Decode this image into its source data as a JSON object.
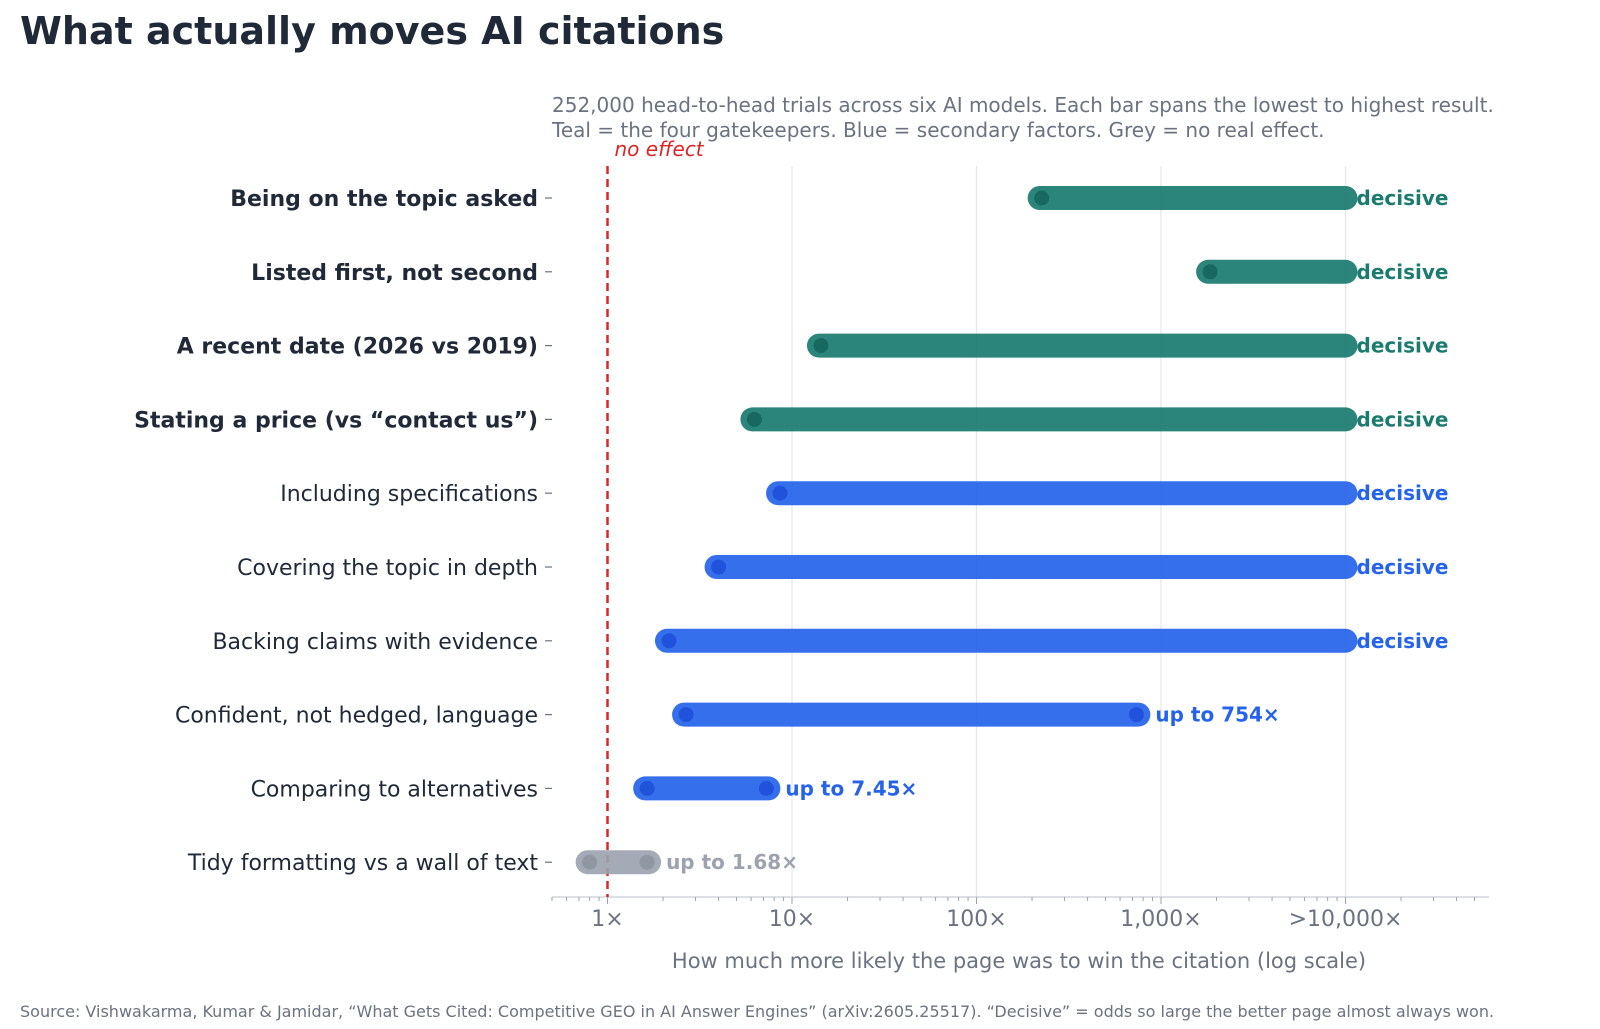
{
  "chart_data": {
    "type": "range-bar",
    "title": "What actually moves AI citations",
    "subtitle_lines": [
      "252,000 head-to-head trials across six AI models. Each bar spans the lowest to highest result.",
      "Teal = the four gatekeepers. Blue = secondary factors. Grey = no real effect."
    ],
    "xlabel": "How much more likely the page was to win the citation (log scale)",
    "x_scale": "log",
    "xlim": [
      0.5,
      50000
    ],
    "x_ticks": [
      {
        "value": 1,
        "label": "1×"
      },
      {
        "value": 10,
        "label": "10×"
      },
      {
        "value": 100,
        "label": "100×"
      },
      {
        "value": 1000,
        "label": "1,000×"
      },
      {
        "value": 10000,
        "label": ">10,000×"
      }
    ],
    "grid": "vertical",
    "reference_line": {
      "value": 1,
      "label": "no effect",
      "color": "#dc2626"
    },
    "colors": {
      "gatekeeper": "#1b7b6f",
      "secondary": "#2563eb",
      "no_effect": "#9ca3af"
    },
    "rows": [
      {
        "label": "Being on the topic asked",
        "low": 220,
        "high": 10000,
        "group": "gatekeeper",
        "end_label": "decisive"
      },
      {
        "label": "Listed first, not second",
        "low": 1800,
        "high": 10000,
        "group": "gatekeeper",
        "end_label": "decisive"
      },
      {
        "label": "A recent date (2026 vs 2019)",
        "low": 14,
        "high": 10000,
        "group": "gatekeeper",
        "end_label": "decisive"
      },
      {
        "label": "Stating a price (vs “contact us”)",
        "low": 6.1,
        "high": 10000,
        "group": "gatekeeper",
        "end_label": "decisive"
      },
      {
        "label": "Including specifications",
        "low": 8.4,
        "high": 10000,
        "group": "secondary",
        "end_label": "decisive"
      },
      {
        "label": "Covering the topic in depth",
        "low": 3.9,
        "high": 10000,
        "group": "secondary",
        "end_label": "decisive"
      },
      {
        "label": "Backing claims with evidence",
        "low": 2.1,
        "high": 10000,
        "group": "secondary",
        "end_label": "decisive"
      },
      {
        "label": "Confident, not hedged, language",
        "low": 2.6,
        "high": 754,
        "group": "secondary",
        "end_label": "up to 754×"
      },
      {
        "label": "Comparing to alternatives",
        "low": 1.6,
        "high": 7.45,
        "group": "secondary",
        "end_label": "up to 7.45×"
      },
      {
        "label": "Tidy formatting vs a wall of text",
        "low": 0.78,
        "high": 1.68,
        "group": "no_effect",
        "end_label": "up to 1.68×"
      }
    ],
    "source": "Source: Vishwakarma, Kumar & Jamidar, “What Gets Cited: Competitive GEO in AI Answer Engines” (arXiv:2605.25517).  “Decisive” = odds so large the better page almost always won."
  }
}
